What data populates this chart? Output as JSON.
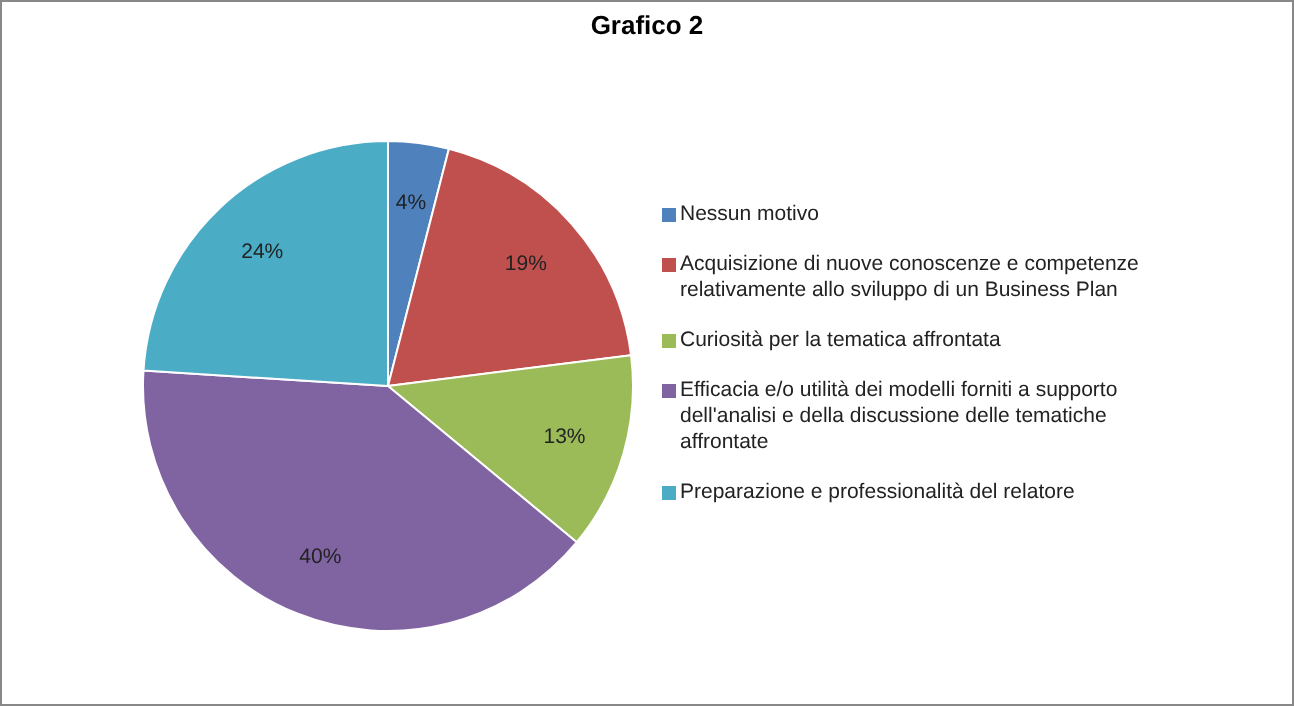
{
  "chart_data": {
    "type": "pie",
    "title": "Grafico 2",
    "categories": [
      "Nessun motivo",
      "Acquisizione di nuove conoscenze e competenze relativamente allo sviluppo di un Business Plan",
      "Curiosità per la tematica affrontata",
      "Efficacia e/o utilità dei modelli forniti a supporto dell'analisi e della discussione delle tematiche affrontate",
      "Preparazione e professionalità del relatore"
    ],
    "values": [
      4,
      19,
      13,
      40,
      24
    ],
    "colors": [
      "#4f81bd",
      "#c0504d",
      "#9bbb59",
      "#8064a2",
      "#4bacc6"
    ],
    "value_labels": [
      "4%",
      "19%",
      "13%",
      "40%",
      "24%"
    ],
    "legend": "right"
  }
}
